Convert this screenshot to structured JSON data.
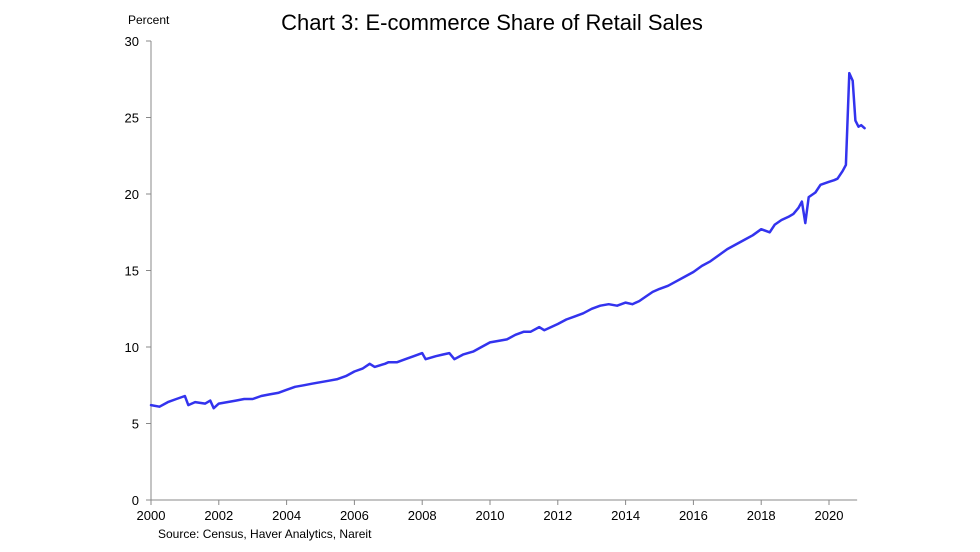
{
  "chart_data": {
    "type": "line",
    "title": "Chart 3: E-commerce Share of Retail Sales",
    "ylabel": "Percent",
    "xlabel": "",
    "source": "Source: Census, Haver Analytics, Nareit",
    "xlim": [
      2000,
      2020.83
    ],
    "ylim": [
      0,
      30
    ],
    "x_ticks": [
      "2000",
      "2002",
      "2004",
      "2006",
      "2008",
      "2010",
      "2012",
      "2014",
      "2016",
      "2018",
      "2020"
    ],
    "y_ticks": [
      "0",
      "5",
      "10",
      "15",
      "20",
      "25",
      "30"
    ],
    "grid": false,
    "series": [
      {
        "name": "",
        "color": "#3333ee",
        "points": [
          [
            2000.0,
            6.2
          ],
          [
            2000.25,
            6.1
          ],
          [
            2000.5,
            6.4
          ],
          [
            2000.75,
            6.6
          ],
          [
            2001.0,
            6.8
          ],
          [
            2001.1,
            6.2
          ],
          [
            2001.3,
            6.4
          ],
          [
            2001.6,
            6.3
          ],
          [
            2001.75,
            6.5
          ],
          [
            2001.85,
            6.0
          ],
          [
            2002.0,
            6.3
          ],
          [
            2002.25,
            6.4
          ],
          [
            2002.5,
            6.5
          ],
          [
            2002.75,
            6.6
          ],
          [
            2003.0,
            6.6
          ],
          [
            2003.25,
            6.8
          ],
          [
            2003.5,
            6.9
          ],
          [
            2003.75,
            7.0
          ],
          [
            2004.0,
            7.2
          ],
          [
            2004.25,
            7.4
          ],
          [
            2004.5,
            7.5
          ],
          [
            2004.75,
            7.6
          ],
          [
            2005.0,
            7.7
          ],
          [
            2005.25,
            7.8
          ],
          [
            2005.5,
            7.9
          ],
          [
            2005.75,
            8.1
          ],
          [
            2006.0,
            8.4
          ],
          [
            2006.25,
            8.6
          ],
          [
            2006.45,
            8.9
          ],
          [
            2006.6,
            8.7
          ],
          [
            2006.9,
            8.9
          ],
          [
            2007.0,
            9.0
          ],
          [
            2007.25,
            9.0
          ],
          [
            2007.5,
            9.2
          ],
          [
            2007.75,
            9.4
          ],
          [
            2008.0,
            9.6
          ],
          [
            2008.1,
            9.2
          ],
          [
            2008.4,
            9.4
          ],
          [
            2008.6,
            9.5
          ],
          [
            2008.8,
            9.6
          ],
          [
            2008.95,
            9.2
          ],
          [
            2009.2,
            9.5
          ],
          [
            2009.5,
            9.7
          ],
          [
            2009.75,
            10.0
          ],
          [
            2010.0,
            10.3
          ],
          [
            2010.25,
            10.4
          ],
          [
            2010.5,
            10.5
          ],
          [
            2010.75,
            10.8
          ],
          [
            2011.0,
            11.0
          ],
          [
            2011.2,
            11.0
          ],
          [
            2011.45,
            11.3
          ],
          [
            2011.6,
            11.1
          ],
          [
            2011.8,
            11.3
          ],
          [
            2012.0,
            11.5
          ],
          [
            2012.25,
            11.8
          ],
          [
            2012.5,
            12.0
          ],
          [
            2012.75,
            12.2
          ],
          [
            2013.0,
            12.5
          ],
          [
            2013.25,
            12.7
          ],
          [
            2013.5,
            12.8
          ],
          [
            2013.75,
            12.7
          ],
          [
            2014.0,
            12.9
          ],
          [
            2014.2,
            12.8
          ],
          [
            2014.4,
            13.0
          ],
          [
            2014.6,
            13.3
          ],
          [
            2014.8,
            13.6
          ],
          [
            2015.0,
            13.8
          ],
          [
            2015.25,
            14.0
          ],
          [
            2015.5,
            14.3
          ],
          [
            2015.75,
            14.6
          ],
          [
            2016.0,
            14.9
          ],
          [
            2016.25,
            15.3
          ],
          [
            2016.5,
            15.6
          ],
          [
            2016.75,
            16.0
          ],
          [
            2017.0,
            16.4
          ],
          [
            2017.25,
            16.7
          ],
          [
            2017.5,
            17.0
          ],
          [
            2017.75,
            17.3
          ],
          [
            2018.0,
            17.7
          ],
          [
            2018.25,
            17.5
          ],
          [
            2018.4,
            18.0
          ],
          [
            2018.6,
            18.3
          ],
          [
            2018.8,
            18.5
          ],
          [
            2018.95,
            18.7
          ],
          [
            2019.1,
            19.1
          ],
          [
            2019.2,
            19.5
          ],
          [
            2019.3,
            18.1
          ],
          [
            2019.4,
            19.8
          ],
          [
            2019.6,
            20.1
          ],
          [
            2019.75,
            20.6
          ],
          [
            2020.0,
            20.8
          ],
          [
            2020.15,
            20.9
          ],
          [
            2020.25,
            21.0
          ],
          [
            2020.4,
            21.5
          ],
          [
            2020.5,
            21.9
          ],
          [
            2020.6,
            27.9
          ],
          [
            2020.7,
            27.4
          ],
          [
            2020.78,
            24.8
          ],
          [
            2020.87,
            24.4
          ],
          [
            2020.95,
            24.5
          ],
          [
            2021.05,
            24.3
          ]
        ]
      }
    ]
  }
}
